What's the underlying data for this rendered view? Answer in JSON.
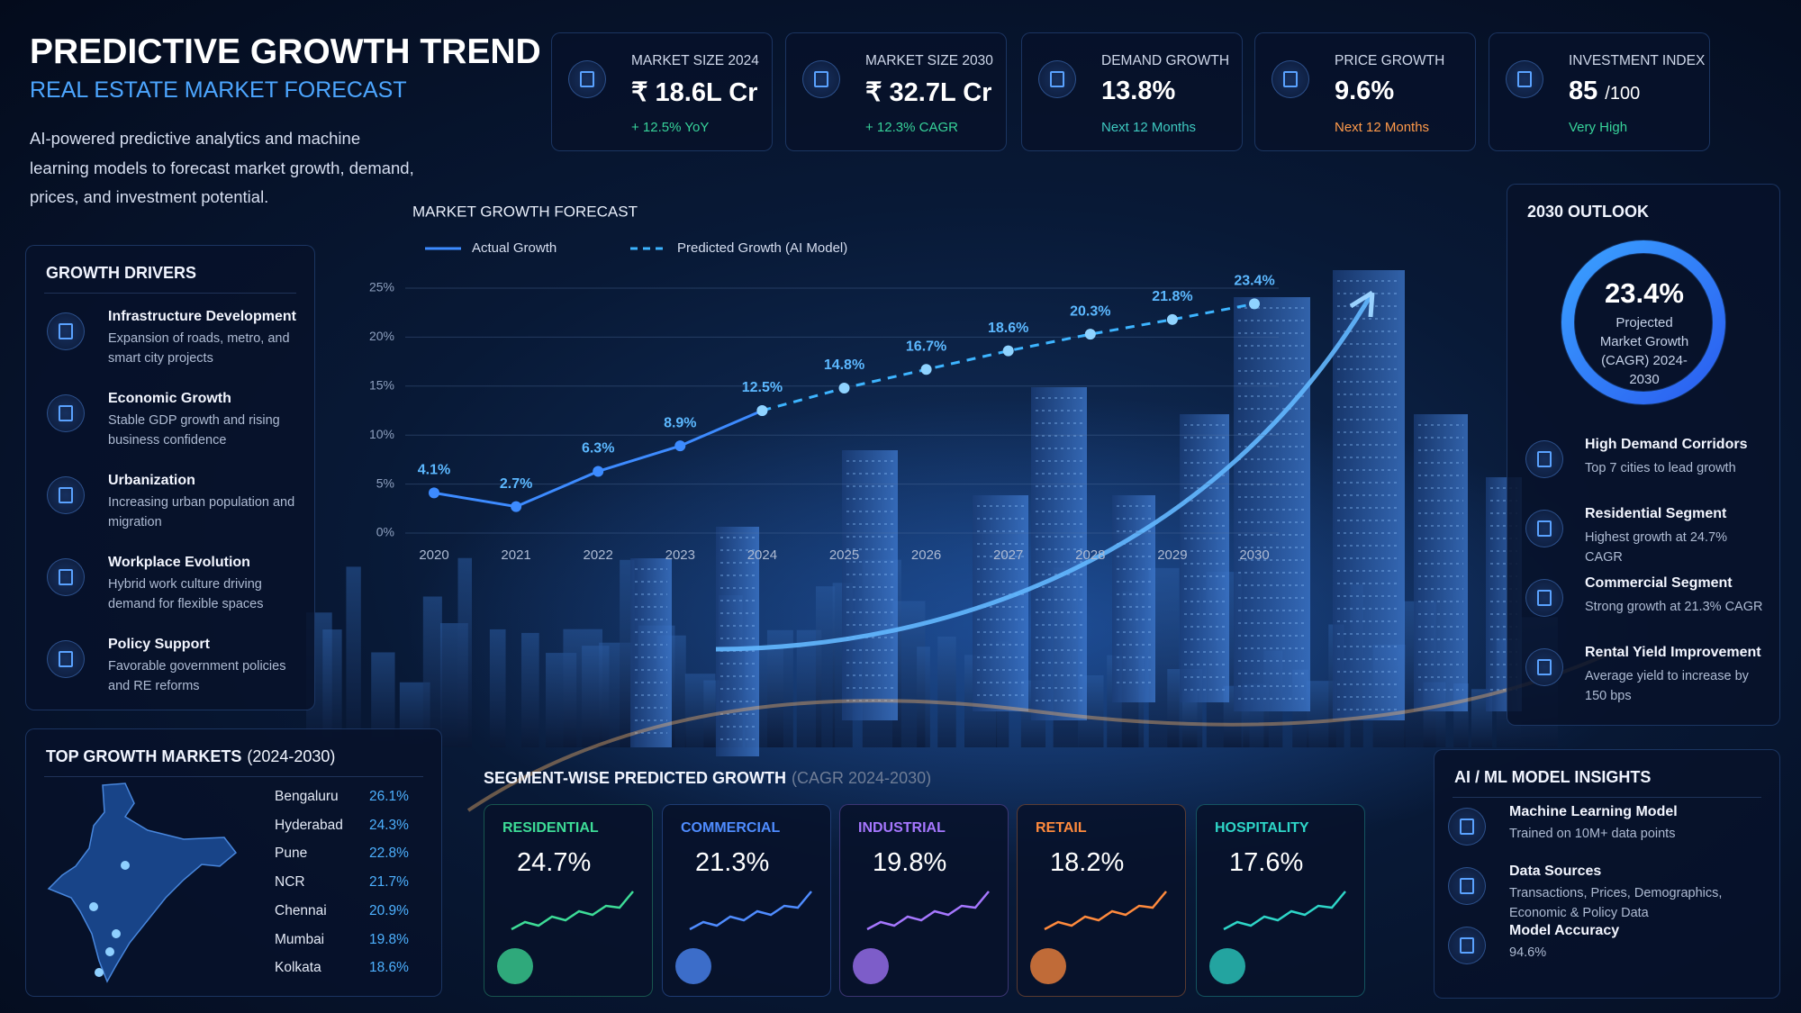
{
  "header": {
    "title": "PREDICTIVE GROWTH TREND",
    "subtitle": "REAL ESTATE MARKET FORECAST",
    "description": "AI-powered predictive analytics and machine learning models to forecast market growth, demand, prices, and investment potential."
  },
  "kpis": [
    {
      "label": "MARKET SIZE 2024",
      "value": "₹ 18.6L Cr",
      "note": "+ 12.5% YoY",
      "note_color": "#37d39a"
    },
    {
      "label": "MARKET SIZE 2030",
      "value": "₹ 32.7L Cr",
      "note": "+ 12.3% CAGR",
      "note_color": "#37d39a"
    },
    {
      "label": "DEMAND GROWTH",
      "value": "13.8%",
      "note": "Next 12 Months",
      "note_color": "#3ec9c0"
    },
    {
      "label": "PRICE GROWTH",
      "value": "9.6%",
      "note": "Next 12 Months",
      "note_color": "#ff9a4a"
    },
    {
      "label": "INVESTMENT INDEX",
      "value": "85",
      "unit": "/100",
      "note": "Very High",
      "note_color": "#37d39a"
    }
  ],
  "growth_drivers": {
    "title": "GROWTH DRIVERS",
    "items": [
      {
        "title": "Infrastructure Development",
        "text": "Expansion of roads, metro, and smart city projects"
      },
      {
        "title": "Economic Growth",
        "text": "Stable GDP growth and rising business confidence"
      },
      {
        "title": "Urbanization",
        "text": "Increasing urban population and migration"
      },
      {
        "title": "Workplace Evolution",
        "text": "Hybrid work culture driving demand for flexible spaces"
      },
      {
        "title": "Policy Support",
        "text": "Favorable government policies and RE reforms"
      }
    ]
  },
  "chart_data": {
    "type": "line",
    "title": "MARKET GROWTH FORECAST",
    "categories": [
      "2020",
      "2021",
      "2022",
      "2023",
      "2024",
      "2025",
      "2026",
      "2027",
      "2028",
      "2029",
      "2030"
    ],
    "series": [
      {
        "name": "Actual Growth",
        "color": "#3d8bff",
        "dashed": false,
        "values": [
          4.1,
          2.7,
          6.3,
          8.9,
          12.5,
          null,
          null,
          null,
          null,
          null,
          null
        ],
        "value_labels": [
          "4.1%",
          "2.7%",
          "6.3%",
          "8.9%",
          "12.5%",
          null,
          null,
          null,
          null,
          null,
          null
        ]
      },
      {
        "name": "Predicted Growth (AI Model)",
        "color": "#3db4ff",
        "dashed": true,
        "values": [
          null,
          null,
          null,
          null,
          12.5,
          14.8,
          16.7,
          18.6,
          20.3,
          21.8,
          23.4
        ],
        "value_labels": [
          null,
          null,
          null,
          null,
          null,
          "14.8%",
          "16.7%",
          "18.6%",
          "20.3%",
          "21.8%",
          "23.4%"
        ]
      }
    ],
    "ylim": [
      0,
      25
    ],
    "yticks": [
      {
        "value": 0,
        "label": "0%"
      },
      {
        "value": 5,
        "label": "5%"
      },
      {
        "value": 10,
        "label": "10%"
      },
      {
        "value": 15,
        "label": "15%"
      },
      {
        "value": 20,
        "label": "20%"
      },
      {
        "value": 25,
        "label": "25%"
      }
    ],
    "grid": true
  },
  "outlook": {
    "title": "2030 OUTLOOK",
    "value": "23.4%",
    "caption": "Projected Market Growth (CAGR) 2024-2030",
    "items": [
      {
        "title": "High Demand Corridors",
        "text": "Top 7 cities to lead growth"
      },
      {
        "title": "Residential Segment",
        "text": "Highest growth at 24.7% CAGR"
      },
      {
        "title": "Commercial Segment",
        "text": "Strong growth at 21.3% CAGR"
      },
      {
        "title": "Rental Yield Improvement",
        "text": "Average yield to increase by 150 bps"
      }
    ]
  },
  "top_markets": {
    "title": "TOP GROWTH MARKETS",
    "title_suffix": "(2024-2030)",
    "rows": [
      {
        "city": "Bengaluru",
        "value": "26.1%"
      },
      {
        "city": "Hyderabad",
        "value": "24.3%"
      },
      {
        "city": "Pune",
        "value": "22.8%"
      },
      {
        "city": "NCR",
        "value": "21.7%"
      },
      {
        "city": "Chennai",
        "value": "20.9%"
      },
      {
        "city": "Mumbai",
        "value": "19.8%"
      },
      {
        "city": "Kolkata",
        "value": "18.6%"
      }
    ]
  },
  "segments": {
    "title": "SEGMENT-WISE PREDICTED GROWTH",
    "title_suffix": "(CAGR 2024-2030)",
    "cards": [
      {
        "name": "RESIDENTIAL",
        "value": "24.7%",
        "color": "#3ddc97"
      },
      {
        "name": "COMMERCIAL",
        "value": "21.3%",
        "color": "#4f8cff"
      },
      {
        "name": "INDUSTRIAL",
        "value": "19.8%",
        "color": "#a677ff"
      },
      {
        "name": "RETAIL",
        "value": "18.2%",
        "color": "#ff8a3d"
      },
      {
        "name": "HOSPITALITY",
        "value": "17.6%",
        "color": "#2ed6c8"
      }
    ]
  },
  "ai_insights": {
    "title": "AI / ML MODEL INSIGHTS",
    "items": [
      {
        "title": "Machine Learning Model",
        "text": "Trained on 10M+ data points"
      },
      {
        "title": "Data Sources",
        "text": "Transactions, Prices, Demographics, Economic & Policy Data"
      },
      {
        "title": "Model Accuracy",
        "text": "94.6%"
      }
    ]
  }
}
